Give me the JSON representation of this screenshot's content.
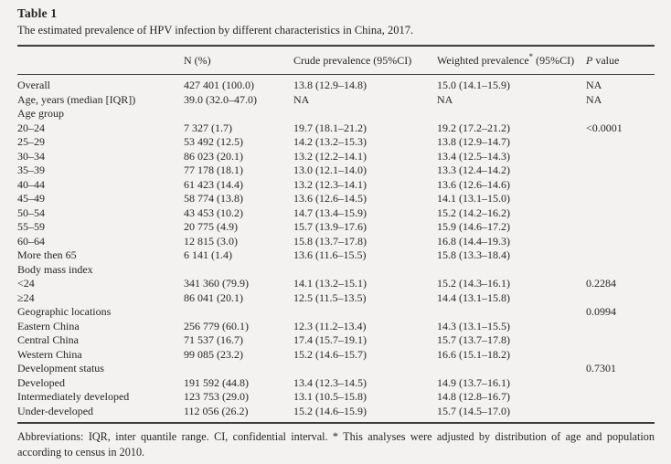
{
  "table": {
    "label": "Table 1",
    "caption": "The estimated prevalence of HPV infection by different characteristics in China, 2017.",
    "columns": {
      "characteristic": "",
      "n": "N (%)",
      "crude": "Crude prevalence (95%CI)",
      "weighted_main": "Weighted prevalence",
      "weighted_sup": "*",
      "weighted_rest": " (95%CI)",
      "p_italic": "P",
      "p_rest": " value"
    },
    "rows": [
      {
        "label": "Overall",
        "n": "427 401 (100.0)",
        "crude": "13.8 (12.9–14.8)",
        "weighted": "15.0 (14.1–15.9)",
        "p": "NA"
      },
      {
        "label": "Age, years (median [IQR])",
        "n": "39.0 (32.0–47.0)",
        "crude": "NA",
        "weighted": "NA",
        "p": "NA"
      },
      {
        "label": "Age group",
        "n": "",
        "crude": "",
        "weighted": "",
        "p": ""
      },
      {
        "label": "20–24",
        "n": "7 327 (1.7)",
        "crude": "19.7 (18.1–21.2)",
        "weighted": "19.2 (17.2–21.2)",
        "p": "<0.0001"
      },
      {
        "label": "25–29",
        "n": "53 492 (12.5)",
        "crude": "14.2 (13.2–15.3)",
        "weighted": "13.8 (12.9–14.7)",
        "p": ""
      },
      {
        "label": "30–34",
        "n": "86 023 (20.1)",
        "crude": "13.2 (12.2–14.1)",
        "weighted": "13.4 (12.5–14.3)",
        "p": ""
      },
      {
        "label": "35–39",
        "n": "77 178 (18.1)",
        "crude": "13.0 (12.1–14.0)",
        "weighted": "13.3 (12.4–14.2)",
        "p": ""
      },
      {
        "label": "40–44",
        "n": "61 423 (14.4)",
        "crude": "13.2 (12.3–14.1)",
        "weighted": "13.6 (12.6–14.6)",
        "p": ""
      },
      {
        "label": "45–49",
        "n": "58 774 (13.8)",
        "crude": "13.6 (12.6–14.5)",
        "weighted": "14.1 (13.1–15.0)",
        "p": ""
      },
      {
        "label": "50–54",
        "n": "43 453 (10.2)",
        "crude": "14.7 (13.4–15.9)",
        "weighted": "15.2 (14.2–16.2)",
        "p": ""
      },
      {
        "label": "55–59",
        "n": "20 775 (4.9)",
        "crude": "15.7 (13.9–17.6)",
        "weighted": "15.9 (14.6–17.2)",
        "p": ""
      },
      {
        "label": "60–64",
        "n": "12 815 (3.0)",
        "crude": "15.8 (13.7–17.8)",
        "weighted": "16.8 (14.4–19.3)",
        "p": ""
      },
      {
        "label": "More then 65",
        "n": "6 141 (1.4)",
        "crude": "13.6 (11.6–15.5)",
        "weighted": "15.8 (13.3–18.4)",
        "p": ""
      },
      {
        "label": "Body mass index",
        "n": "",
        "crude": "",
        "weighted": "",
        "p": ""
      },
      {
        "label": "<24",
        "n": "341 360 (79.9)",
        "crude": "14.1 (13.2–15.1)",
        "weighted": "15.2 (14.3–16.1)",
        "p": "0.2284"
      },
      {
        "label": "≥24",
        "n": "86 041 (20.1)",
        "crude": "12.5 (11.5–13.5)",
        "weighted": "14.4 (13.1–15.8)",
        "p": ""
      },
      {
        "label": "Geographic locations",
        "n": "",
        "crude": "",
        "weighted": "",
        "p": "0.0994"
      },
      {
        "label": "Eastern China",
        "n": "256 779 (60.1)",
        "crude": "12.3 (11.2–13.4)",
        "weighted": "14.3 (13.1–15.5)",
        "p": ""
      },
      {
        "label": "Central China",
        "n": "71 537 (16.7)",
        "crude": "17.4 (15.7–19.1)",
        "weighted": "15.7 (13.7–17.8)",
        "p": ""
      },
      {
        "label": "Western China",
        "n": "99 085 (23.2)",
        "crude": "15.2 (14.6–15.7)",
        "weighted": "16.6 (15.1–18.2)",
        "p": ""
      },
      {
        "label": "Development status",
        "n": "",
        "crude": "",
        "weighted": "",
        "p": "0.7301"
      },
      {
        "label": "Developed",
        "n": "191 592 (44.8)",
        "crude": "13.4 (12.3–14.5)",
        "weighted": "14.9 (13.7–16.1)",
        "p": ""
      },
      {
        "label": "Intermediately developed",
        "n": "123 753 (29.0)",
        "crude": "13.1 (10.5–15.8)",
        "weighted": "14.8 (12.8–16.7)",
        "p": ""
      },
      {
        "label": "Under-developed",
        "n": "112 056 (26.2)",
        "crude": "15.2 (14.6–15.9)",
        "weighted": "15.7 (14.5–17.0)",
        "p": ""
      }
    ],
    "footnote": "Abbreviations: IQR, inter quantile range. CI, confidential interval. * This analyses were adjusted by distribution of age and population according to census in 2010."
  }
}
